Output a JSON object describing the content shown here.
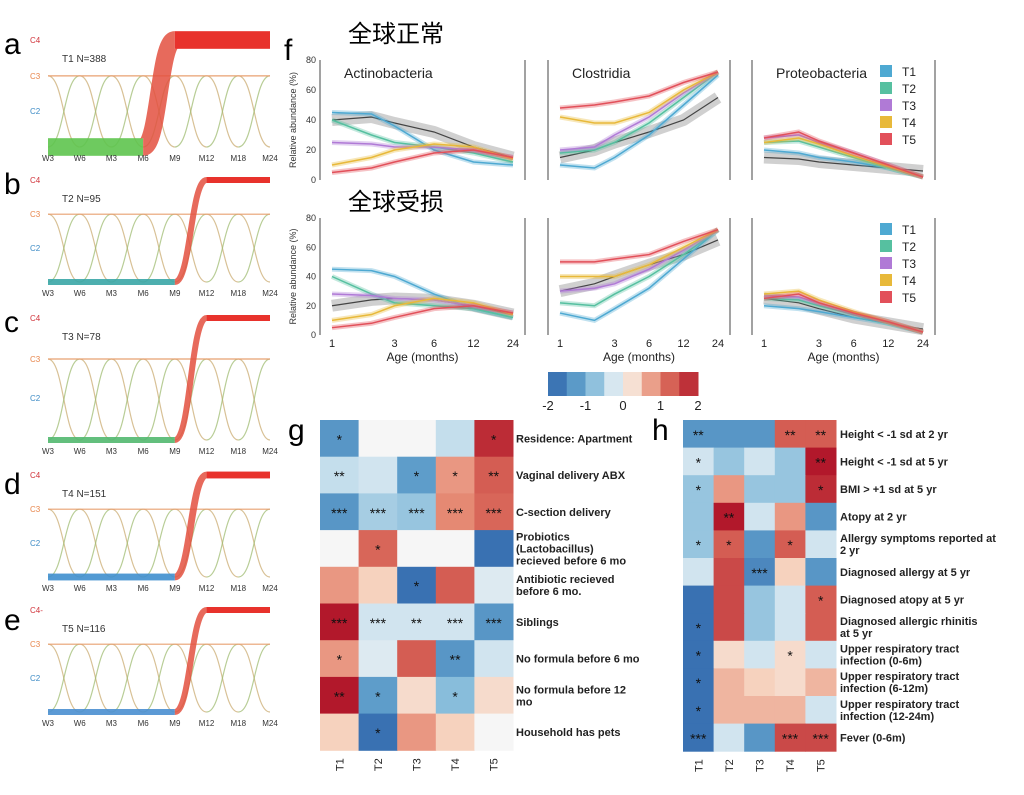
{
  "panel_letters": {
    "a": "a",
    "b": "b",
    "c": "c",
    "d": "d",
    "e": "e",
    "f": "f",
    "g": "g",
    "h": "h"
  },
  "alluvial": {
    "x_ticks": [
      "W3",
      "W6",
      "M3",
      "M6",
      "M9",
      "M12",
      "M18",
      "M24"
    ],
    "y_labels": [
      "C4",
      "C3",
      "C2"
    ],
    "e_c4_label": "C4-",
    "panels": [
      {
        "letter": "a",
        "title": "T1 N=388",
        "band_color": "#5ec44e",
        "entry_month": "M6",
        "count": 388
      },
      {
        "letter": "b",
        "title": "T2 N=95",
        "band_color": "#3aa6a6",
        "entry_month": "M9",
        "count": 95
      },
      {
        "letter": "c",
        "title": "T3 N=78",
        "band_color": "#52b86f",
        "entry_month": "M9",
        "count": 78
      },
      {
        "letter": "d",
        "title": "T4 N=151",
        "band_color": "#3f8fce",
        "entry_month": "M9",
        "count": 151
      },
      {
        "letter": "e",
        "title": "T5 N=116",
        "band_color": "#4a8fd0",
        "entry_month": "M9",
        "count": 116
      }
    ]
  },
  "panel_f": {
    "section_titles": [
      "全球正常",
      "全球受损"
    ],
    "ylabel": "Relative abundance (%)",
    "xlabel": "Age (months)",
    "x_tick_labels": [
      "1",
      "3",
      "6",
      "12",
      "24"
    ],
    "y_tick_labels": [
      "0",
      "20",
      "40",
      "60",
      "80"
    ],
    "column_titles": [
      "Actinobacteria",
      "Clostridia",
      "Proteobacteria"
    ],
    "legend": [
      {
        "label": "T1",
        "color": "#4ea9d2"
      },
      {
        "label": "T2",
        "color": "#56c0a0"
      },
      {
        "label": "T3",
        "color": "#b07ad6"
      },
      {
        "label": "T4",
        "color": "#e8b93a"
      },
      {
        "label": "T5",
        "color": "#e2505a"
      }
    ]
  },
  "chart_data": [
    {
      "type": "line",
      "panel": "f-normal",
      "x_scale": "log",
      "x": [
        1,
        2,
        3,
        6,
        12,
        24
      ],
      "ylim": [
        0,
        80
      ],
      "subplots": [
        {
          "title": "Actinobacteria",
          "reference": [
            40,
            42,
            38,
            32,
            22,
            15
          ],
          "series": [
            {
              "name": "T1",
              "values": [
                45,
                44,
                36,
                20,
                12,
                10
              ]
            },
            {
              "name": "T2",
              "values": [
                40,
                30,
                25,
                22,
                18,
                12
              ]
            },
            {
              "name": "T3",
              "values": [
                25,
                24,
                22,
                22,
                20,
                15
              ]
            },
            {
              "name": "T4",
              "values": [
                10,
                15,
                20,
                24,
                22,
                14
              ]
            },
            {
              "name": "T5",
              "values": [
                5,
                8,
                12,
                18,
                20,
                15
              ]
            }
          ]
        },
        {
          "title": "Clostridia",
          "reference": [
            15,
            20,
            25,
            32,
            40,
            55
          ],
          "series": [
            {
              "name": "T1",
              "values": [
                10,
                8,
                15,
                30,
                50,
                70
              ]
            },
            {
              "name": "T2",
              "values": [
                18,
                20,
                25,
                38,
                55,
                72
              ]
            },
            {
              "name": "T3",
              "values": [
                20,
                22,
                30,
                42,
                58,
                72
              ]
            },
            {
              "name": "T4",
              "values": [
                42,
                38,
                38,
                45,
                60,
                72
              ]
            },
            {
              "name": "T5",
              "values": [
                48,
                50,
                52,
                56,
                65,
                72
              ]
            }
          ]
        },
        {
          "title": "Proteobacteria",
          "reference": [
            15,
            14,
            12,
            10,
            8,
            6
          ],
          "series": [
            {
              "name": "T1",
              "values": [
                20,
                18,
                15,
                12,
                8,
                2
              ]
            },
            {
              "name": "T2",
              "values": [
                25,
                26,
                22,
                15,
                8,
                2
              ]
            },
            {
              "name": "T3",
              "values": [
                28,
                30,
                25,
                18,
                10,
                2
              ]
            },
            {
              "name": "T4",
              "values": [
                25,
                28,
                24,
                16,
                9,
                2
              ]
            },
            {
              "name": "T5",
              "values": [
                28,
                32,
                26,
                18,
                10,
                2
              ]
            }
          ]
        }
      ]
    },
    {
      "type": "line",
      "panel": "f-impaired",
      "x_scale": "log",
      "x": [
        1,
        2,
        3,
        6,
        12,
        24
      ],
      "ylim": [
        0,
        80
      ],
      "subplots": [
        {
          "title": "",
          "reference": [
            20,
            24,
            25,
            24,
            20,
            14
          ],
          "series": [
            {
              "name": "T1",
              "values": [
                45,
                44,
                40,
                28,
                18,
                12
              ]
            },
            {
              "name": "T2",
              "values": [
                40,
                28,
                22,
                20,
                18,
                12
              ]
            },
            {
              "name": "T3",
              "values": [
                28,
                27,
                25,
                24,
                20,
                15
              ]
            },
            {
              "name": "T4",
              "values": [
                10,
                14,
                20,
                25,
                22,
                14
              ]
            },
            {
              "name": "T5",
              "values": [
                5,
                8,
                12,
                18,
                20,
                15
              ]
            }
          ]
        },
        {
          "title": "",
          "reference": [
            30,
            35,
            40,
            48,
            55,
            65
          ],
          "series": [
            {
              "name": "T1",
              "values": [
                15,
                10,
                18,
                32,
                52,
                72
              ]
            },
            {
              "name": "T2",
              "values": [
                22,
                20,
                28,
                40,
                55,
                72
              ]
            },
            {
              "name": "T3",
              "values": [
                30,
                32,
                35,
                45,
                58,
                72
              ]
            },
            {
              "name": "T4",
              "values": [
                40,
                40,
                40,
                48,
                60,
                72
              ]
            },
            {
              "name": "T5",
              "values": [
                50,
                50,
                52,
                55,
                64,
                72
              ]
            }
          ]
        },
        {
          "title": "",
          "reference": [
            25,
            22,
            18,
            12,
            8,
            4
          ],
          "series": [
            {
              "name": "T1",
              "values": [
                20,
                18,
                16,
                12,
                8,
                2
              ]
            },
            {
              "name": "T2",
              "values": [
                25,
                24,
                20,
                14,
                8,
                2
              ]
            },
            {
              "name": "T3",
              "values": [
                27,
                26,
                22,
                15,
                9,
                2
              ]
            },
            {
              "name": "T4",
              "values": [
                28,
                30,
                24,
                16,
                9,
                2
              ]
            },
            {
              "name": "T5",
              "values": [
                25,
                28,
                22,
                15,
                9,
                2
              ]
            }
          ]
        }
      ]
    },
    {
      "type": "heatmap",
      "panel": "g",
      "columns": [
        "T1",
        "T2",
        "T3",
        "T4",
        "T5"
      ],
      "rows": [
        {
          "label": "Residence: Apartment",
          "values": [
            -1.3,
            0,
            0,
            -0.4,
            1.8
          ],
          "stars": [
            "*",
            "",
            "",
            "",
            "*"
          ]
        },
        {
          "label": "Vaginal delivery ABX",
          "values": [
            -0.4,
            -0.3,
            -1.2,
            0.8,
            1.3
          ],
          "stars": [
            "**",
            "",
            "*",
            "*",
            "**"
          ]
        },
        {
          "label": "C-section delivery",
          "values": [
            -1.3,
            -0.6,
            -0.7,
            0.9,
            1.2
          ],
          "stars": [
            "***",
            "***",
            "***",
            "***",
            "***"
          ]
        },
        {
          "label": "Probiotics (Lactobacillus) recieved before 6 mo",
          "values": [
            0,
            1.2,
            0,
            0,
            -1.8
          ],
          "stars": [
            "",
            "*",
            "",
            "",
            ""
          ]
        },
        {
          "label": "Antibiotic recieved before 6 mo.",
          "values": [
            0.8,
            0.4,
            -1.8,
            1.3,
            -0.2
          ],
          "stars": [
            "",
            "",
            "*",
            "",
            ""
          ]
        },
        {
          "label": "Siblings",
          "values": [
            2,
            -0.3,
            -0.3,
            -0.3,
            -1.3
          ],
          "stars": [
            "***",
            "***",
            "**",
            "***",
            "***"
          ]
        },
        {
          "label": "No formula before 6 mo",
          "values": [
            0.8,
            -0.2,
            1.3,
            -1.3,
            -0.3
          ],
          "stars": [
            "*",
            "",
            "",
            "**",
            ""
          ]
        },
        {
          "label": "No formula before 12 mo",
          "values": [
            2,
            -1.2,
            0.3,
            -0.8,
            0.3
          ],
          "stars": [
            "**",
            "*",
            "",
            "*",
            ""
          ]
        },
        {
          "label": "Household has pets",
          "values": [
            0.4,
            -1.8,
            0.8,
            0.4,
            0
          ],
          "stars": [
            "",
            "*",
            "",
            "",
            ""
          ]
        }
      ],
      "colorbar": {
        "ticks": [
          -2,
          -1,
          0,
          1,
          2
        ],
        "tick_labels": [
          "-2",
          "-1",
          "0",
          "1",
          "2"
        ]
      }
    },
    {
      "type": "heatmap",
      "panel": "h",
      "columns": [
        "T1",
        "T2",
        "T3",
        "T4",
        "T5"
      ],
      "rows": [
        {
          "label": "Height < -1 sd at 2 yr",
          "values": [
            -1.3,
            -1.3,
            -1.3,
            1.3,
            1.3
          ],
          "stars": [
            "**",
            "",
            "",
            "**",
            "**"
          ]
        },
        {
          "label": "Height < -1 sd at 5 yr",
          "values": [
            -0.3,
            -0.7,
            -0.3,
            -0.7,
            2
          ],
          "stars": [
            "*",
            "",
            "",
            "",
            "**"
          ]
        },
        {
          "label": "BMI > +1 sd at 5 yr",
          "values": [
            -0.7,
            0.8,
            -0.7,
            -0.7,
            1.8
          ],
          "stars": [
            "*",
            "",
            "",
            "",
            "*"
          ]
        },
        {
          "label": "Atopy at 2 yr",
          "values": [
            -0.7,
            2,
            -0.3,
            0.8,
            -1.3
          ],
          "stars": [
            "",
            "**",
            "",
            "",
            ""
          ]
        },
        {
          "label": "Allergy symptoms reported at 2 yr",
          "values": [
            -0.7,
            1.3,
            -1.3,
            1.3,
            -0.3
          ],
          "stars": [
            "*",
            "*",
            "",
            "*",
            ""
          ]
        },
        {
          "label": "Diagnosed allergy at 5 yr",
          "values": [
            -0.3,
            1.5,
            -1.5,
            0.4,
            -1.3
          ],
          "stars": [
            "",
            "",
            "***",
            "",
            ""
          ]
        },
        {
          "label": "Diagnosed atopy at 5 yr",
          "values": [
            -1.8,
            1.5,
            -0.7,
            -0.3,
            1.3
          ],
          "stars": [
            "",
            "",
            "",
            "",
            "*"
          ]
        },
        {
          "label": "Diagnosed allergic rhinitis at 5 yr",
          "values": [
            -1.8,
            1.5,
            -0.7,
            -0.3,
            1.3
          ],
          "stars": [
            "*",
            "",
            "",
            "",
            ""
          ]
        },
        {
          "label": "Upper respiratory tract infection (0-6m)",
          "values": [
            -1.8,
            0.3,
            -0.3,
            0.3,
            -0.3
          ],
          "stars": [
            "*",
            "",
            "",
            "*",
            ""
          ]
        },
        {
          "label": "Upper respiratory tract infection (6-12m)",
          "values": [
            -1.8,
            0.6,
            0.4,
            0.3,
            0.6
          ],
          "stars": [
            "*",
            "",
            "",
            "",
            ""
          ]
        },
        {
          "label": "Upper respiratory tract infection (12-24m)",
          "values": [
            -1.8,
            0.6,
            0.6,
            0.6,
            -0.3
          ],
          "stars": [
            "*",
            "",
            "",
            "",
            ""
          ]
        },
        {
          "label": "Fever (0-6m)",
          "values": [
            -1.8,
            -0.3,
            -1.3,
            1.5,
            1.5
          ],
          "stars": [
            "***",
            "",
            "",
            "***",
            "***"
          ]
        }
      ]
    }
  ]
}
